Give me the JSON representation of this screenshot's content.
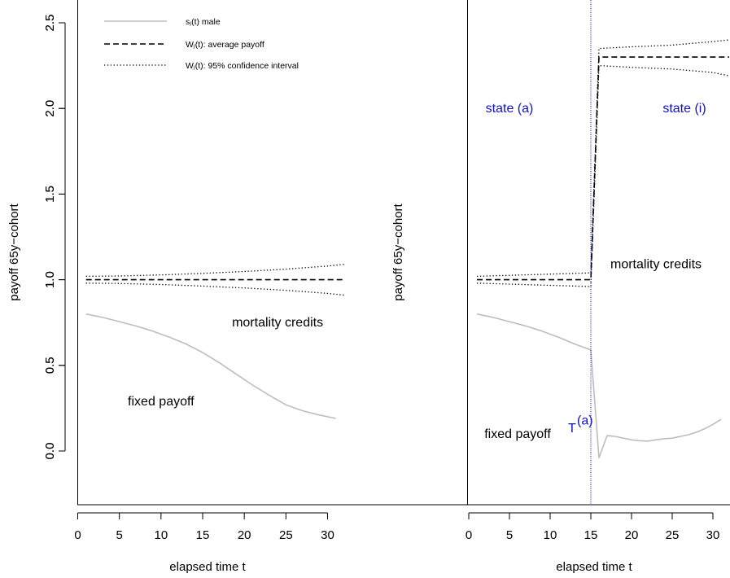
{
  "chart_data": [
    {
      "type": "line",
      "title": "",
      "xlabel": "elapsed time t",
      "ylabel": "payoff 65y−cohort",
      "xlim": [
        0,
        32
      ],
      "ylim": [
        -0.3,
        2.55
      ],
      "x_ticks": [
        "0",
        "5",
        "10",
        "15",
        "20",
        "25",
        "30"
      ],
      "y_ticks": [
        "0.0",
        "0.5",
        "1.0",
        "1.5",
        "2.0",
        "2.5"
      ],
      "legend": {
        "position": "top-left",
        "entries": [
          {
            "label": "sⱼ(t) male",
            "style": "solid-gray"
          },
          {
            "label": "Wⱼ(t): average payoff",
            "style": "dashed"
          },
          {
            "label": "Wⱼ(t): 95% confidence interval",
            "style": "dotted"
          }
        ]
      },
      "annotations": [
        {
          "text": "mortality credits",
          "x": 24,
          "y": 0.75
        },
        {
          "text": "fixed payoff",
          "x": 10,
          "y": 0.29
        }
      ],
      "series": [
        {
          "name": "sⱼ(t) male",
          "style": "solid-gray",
          "x": [
            1,
            3,
            5,
            7,
            9,
            11,
            13,
            15,
            17,
            19,
            21,
            23,
            25,
            27,
            29,
            31
          ],
          "y": [
            0.8,
            0.78,
            0.755,
            0.73,
            0.7,
            0.665,
            0.625,
            0.575,
            0.515,
            0.45,
            0.385,
            0.325,
            0.27,
            0.235,
            0.21,
            0.19
          ]
        },
        {
          "name": "Wⱼ(t): average payoff",
          "style": "dashed",
          "x": [
            1,
            32
          ],
          "y": [
            1.0,
            1.0
          ]
        },
        {
          "name": "Wⱼ(t): 95% confidence interval upper",
          "style": "dotted",
          "x": [
            1,
            5,
            10,
            15,
            20,
            25,
            30,
            32
          ],
          "y": [
            1.02,
            1.022,
            1.028,
            1.037,
            1.048,
            1.062,
            1.08,
            1.09
          ]
        },
        {
          "name": "Wⱼ(t): 95% confidence interval lower",
          "style": "dotted",
          "x": [
            1,
            5,
            10,
            15,
            20,
            25,
            30,
            32
          ],
          "y": [
            0.98,
            0.978,
            0.972,
            0.963,
            0.952,
            0.938,
            0.92,
            0.91
          ]
        }
      ]
    },
    {
      "type": "line",
      "title": "",
      "xlabel": "elapsed time t",
      "ylabel": "payoff 65y−cohort",
      "xlim": [
        0,
        32
      ],
      "ylim": [
        -0.3,
        2.55
      ],
      "x_ticks": [
        "0",
        "5",
        "10",
        "15",
        "20",
        "25",
        "30"
      ],
      "y_ticks": [
        "0.0",
        "0.5",
        "1.0",
        "1.5",
        "2.0",
        "2.5"
      ],
      "vline": {
        "x": 15,
        "label": "T",
        "superscript": "(a)"
      },
      "annotations": [
        {
          "text": "state (a)",
          "x": 5,
          "y": 2.0,
          "color": "#1010cc"
        },
        {
          "text": "state (i)",
          "x": 26.5,
          "y": 2.0,
          "color": "#1010cc"
        },
        {
          "text": "mortality credits",
          "x": 23,
          "y": 1.09
        },
        {
          "text": "fixed payoff",
          "x": 6,
          "y": 0.1
        }
      ],
      "series": [
        {
          "name": "sⱼ(t) male",
          "style": "solid-gray",
          "x": [
            1,
            3,
            5,
            7,
            9,
            11,
            13,
            15,
            16,
            17,
            18,
            19,
            20,
            21,
            22,
            23,
            24,
            25,
            26,
            27,
            28,
            29,
            30,
            31
          ],
          "y": [
            0.8,
            0.78,
            0.755,
            0.73,
            0.7,
            0.665,
            0.625,
            0.59,
            -0.04,
            0.09,
            0.085,
            0.075,
            0.065,
            0.06,
            0.058,
            0.065,
            0.072,
            0.075,
            0.085,
            0.095,
            0.11,
            0.13,
            0.155,
            0.185
          ]
        },
        {
          "name": "Wⱼ(t): average payoff",
          "style": "dashed",
          "x": [
            1,
            15,
            16,
            17,
            20,
            25,
            30,
            32
          ],
          "y": [
            1.0,
            1.0,
            2.3,
            2.3,
            2.3,
            2.3,
            2.3,
            2.3
          ]
        },
        {
          "name": "Wⱼ(t): 95% confidence interval upper",
          "style": "dotted",
          "x": [
            1,
            15,
            16,
            20,
            25,
            30,
            32
          ],
          "y": [
            1.02,
            1.04,
            2.35,
            2.36,
            2.37,
            2.39,
            2.4
          ]
        },
        {
          "name": "Wⱼ(t): 95% confidence interval lower",
          "style": "dotted",
          "x": [
            1,
            15,
            16,
            20,
            25,
            30,
            32
          ],
          "y": [
            0.98,
            0.96,
            2.25,
            2.24,
            2.23,
            2.21,
            2.19
          ]
        }
      ]
    }
  ]
}
